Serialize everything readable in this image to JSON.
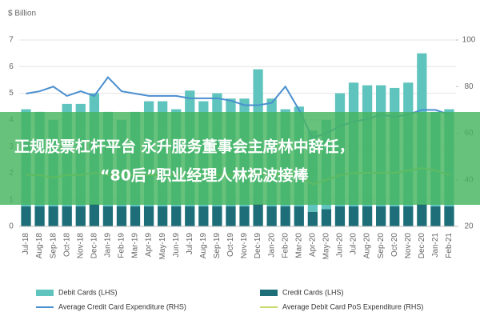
{
  "chart_data": {
    "type": "bar",
    "y_label": "$ Billion",
    "categories": [
      "Jul-18",
      "Aug-18",
      "Sep-18",
      "Oct-18",
      "Nov-18",
      "Dec-18",
      "Jan-19",
      "Feb-19",
      "Mar-19",
      "Apr-19",
      "May-19",
      "Jun-19",
      "Jul-19",
      "Aug-19",
      "Sep-19",
      "Oct-19",
      "Nov-19",
      "Dec-19",
      "Jan-20",
      "Feb-20",
      "Mar-20",
      "Apr-20",
      "May-20",
      "Jun-20",
      "Jul-20",
      "Aug-20",
      "Sep-20",
      "Oct-20",
      "Nov-20",
      "Dec-20",
      "Jan-21",
      "Feb-21"
    ],
    "series": [
      {
        "name": "Debit Cards (LHS)",
        "type": "bar",
        "color": "#5fc4bd",
        "values": [
          3.65,
          3.55,
          3.25,
          3.85,
          3.85,
          4.15,
          3.55,
          3.25,
          3.55,
          3.95,
          3.95,
          3.65,
          4.35,
          3.95,
          4.25,
          4.05,
          4.05,
          5.05,
          4.05,
          3.65,
          3.75,
          3.05,
          3.35,
          4.25,
          4.65,
          4.55,
          4.55,
          4.45,
          4.65,
          5.65,
          3.55,
          3.65
        ]
      },
      {
        "name": "Credit Cards (LHS)",
        "type": "bar",
        "color": "#1d6e78",
        "values": [
          0.75,
          0.75,
          0.75,
          0.75,
          0.75,
          0.85,
          0.75,
          0.75,
          0.75,
          0.75,
          0.75,
          0.75,
          0.75,
          0.75,
          0.75,
          0.75,
          0.75,
          0.85,
          0.75,
          0.75,
          0.75,
          0.55,
          0.65,
          0.75,
          0.75,
          0.75,
          0.75,
          0.75,
          0.75,
          0.85,
          0.75,
          0.75
        ]
      },
      {
        "name": "Average Credit Card Expenditure (RHS)",
        "type": "line",
        "axis": "y2",
        "color": "#4a8fd0",
        "values": [
          77,
          78,
          80,
          76,
          78,
          76,
          84,
          78,
          77,
          76,
          76,
          76,
          75,
          75,
          75,
          74,
          72,
          72,
          73,
          80,
          70,
          58,
          60,
          63,
          65,
          66,
          68,
          67,
          68,
          70,
          70,
          68
        ]
      },
      {
        "name": "Average Debit Card PoS Expenditure (RHS)",
        "type": "line",
        "axis": "y2",
        "color": "#c9d96c",
        "values": [
          42,
          42,
          41,
          42,
          42,
          43,
          42,
          42,
          42,
          42,
          42,
          42,
          43,
          42,
          42,
          42,
          42,
          43,
          42,
          42,
          42,
          38,
          40,
          42,
          43,
          43,
          43,
          43,
          44,
          45,
          44,
          42
        ]
      }
    ],
    "ylim": [
      0,
      7
    ],
    "yticks": [
      0,
      1,
      2,
      3,
      4,
      5,
      6,
      7
    ],
    "y2lim": [
      20,
      100
    ],
    "y2ticks": [
      20,
      40,
      60,
      80,
      100
    ],
    "banner": [
      "正规股票杠杆平台 永升服务董事会主席林中辞任，",
      "“80后”职业经理人林祝波接棒"
    ]
  }
}
